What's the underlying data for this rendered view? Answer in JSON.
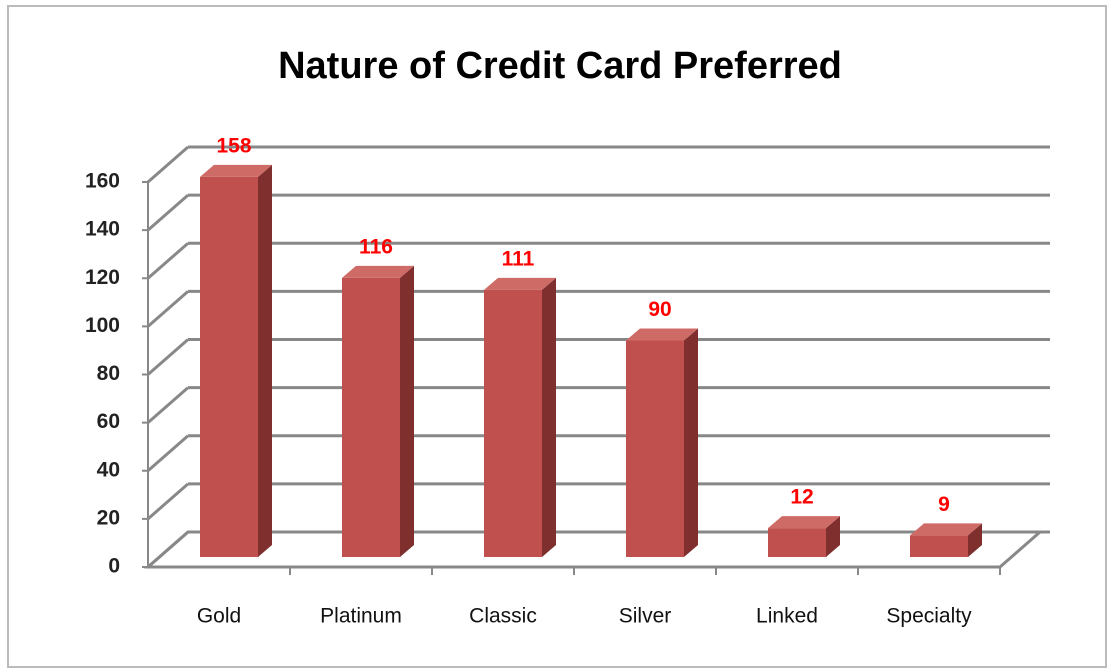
{
  "chart_data": {
    "type": "bar",
    "title": "Nature of Credit Card Preferred",
    "categories": [
      "Gold",
      "Platinum",
      "Classic",
      "Silver",
      "Linked",
      "Specialty"
    ],
    "values": [
      158,
      116,
      111,
      90,
      12,
      9
    ],
    "color": "#c0504d",
    "ylim": [
      0,
      160
    ],
    "yticks": [
      0,
      20,
      40,
      60,
      80,
      100,
      120,
      140,
      160
    ],
    "grid": true
  }
}
